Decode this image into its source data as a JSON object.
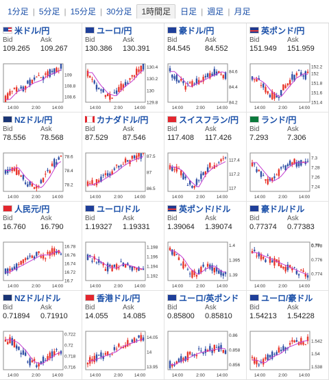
{
  "tabs": [
    {
      "label": "1分足",
      "active": false
    },
    {
      "label": "5分足",
      "active": false
    },
    {
      "label": "15分足",
      "active": false
    },
    {
      "label": "30分足",
      "active": false
    },
    {
      "label": "1時間足",
      "active": true
    },
    {
      "label": "日足",
      "active": false
    },
    {
      "label": "週足",
      "active": false
    },
    {
      "label": "月足",
      "active": false
    }
  ],
  "colors": {
    "up": "#e8352b",
    "down": "#2f4fa5",
    "ma": "#c43bd1",
    "link": "#1a4fa8"
  },
  "pairs": [
    {
      "name": "米ドル/円",
      "flag": "usa",
      "bid": "109.265",
      "ask": "109.267",
      "yticks": [
        "109",
        "108.8",
        "108.6"
      ],
      "xticks": [
        "14:00",
        "2:00",
        "14:00"
      ]
    },
    {
      "name": "ユーロ/円",
      "flag": "eur",
      "bid": "130.386",
      "ask": "130.391",
      "yticks": [
        "130.4",
        "130.2",
        "130",
        "129.8"
      ],
      "xticks": [
        "14:00",
        "2:00",
        "14:00"
      ]
    },
    {
      "name": "豪ドル/円",
      "flag": "aud",
      "bid": "84.545",
      "ask": "84.552",
      "yticks": [
        "84.6",
        "84.4",
        "84.2"
      ],
      "xticks": [
        "14:00",
        "2:00",
        "14:00"
      ]
    },
    {
      "name": "英ポンド/円",
      "flag": "gbr",
      "bid": "151.949",
      "ask": "151.959",
      "yticks": [
        "152.2",
        "152",
        "151.8",
        "151.6",
        "151.4"
      ],
      "xticks": [
        "14:00",
        "2:00",
        "14:00"
      ]
    },
    {
      "name": "NZドル/円",
      "flag": "nzd",
      "bid": "78.556",
      "ask": "78.568",
      "yticks": [
        "78.6",
        "78.4",
        "78.2"
      ],
      "xticks": [
        "14:00",
        "2:00",
        "14:00"
      ]
    },
    {
      "name": "カナダドル/円",
      "flag": "cad",
      "bid": "87.529",
      "ask": "87.546",
      "yticks": [
        "87.5",
        "87",
        "86.5"
      ],
      "xticks": [
        "14:00",
        "2:00",
        "14:00"
      ]
    },
    {
      "name": "スイスフラン/円",
      "flag": "chf",
      "bid": "117.408",
      "ask": "117.426",
      "yticks": [
        "117.4",
        "117.2",
        "117"
      ],
      "xticks": [
        "14:00",
        "2:00",
        "14:00"
      ]
    },
    {
      "name": "ランド/円",
      "flag": "zar",
      "bid": "7.293",
      "ask": "7.306",
      "yticks": [
        "7.3",
        "7.28",
        "7.26",
        "7.24"
      ],
      "xticks": [
        "14:00",
        "2:00",
        "14:00"
      ]
    },
    {
      "name": "人民元/円",
      "flag": "cny",
      "bid": "16.760",
      "ask": "16.790",
      "yticks": [
        "16.78",
        "16.76",
        "16.74",
        "16.72",
        "16.7"
      ],
      "xticks": [
        "14:00",
        "2:00",
        "14:00"
      ]
    },
    {
      "name": "ユーロ/ドル",
      "flag": "eur",
      "bid": "1.19327",
      "ask": "1.19331",
      "yticks": [
        "1.198",
        "1.196",
        "1.194",
        "1.192"
      ],
      "xticks": [
        "14:00",
        "2:00",
        "14:00"
      ]
    },
    {
      "name": "英ポンド/ドル",
      "flag": "gbr",
      "bid": "1.39064",
      "ask": "1.39074",
      "yticks": [
        "1.4",
        "1.395",
        "1.39"
      ],
      "xticks": [
        "14:00",
        "2:00",
        "14:00"
      ]
    },
    {
      "name": "豪ドル/ドル",
      "flag": "aud",
      "bid": "0.77374",
      "ask": "0.77383",
      "yticks": [
        "0.78",
        "0.778",
        "0.776",
        "0.774"
      ],
      "xticks": [
        "14:00",
        "2:00",
        "14:00"
      ]
    },
    {
      "name": "NZドル/ドル",
      "flag": "nzd",
      "bid": "0.71894",
      "ask": "0.71910",
      "yticks": [
        "0.722",
        "0.72",
        "0.718",
        "0.716"
      ],
      "xticks": [
        "14:00",
        "2:00",
        "14:00"
      ]
    },
    {
      "name": "香港ドル/円",
      "flag": "hkd",
      "bid": "14.055",
      "ask": "14.085",
      "yticks": [
        "14.05",
        "14",
        "13.95"
      ],
      "xticks": [
        "14:00",
        "2:00",
        "14:00"
      ]
    },
    {
      "name": "ユーロ/英ポンド",
      "flag": "eur",
      "bid": "0.85800",
      "ask": "0.85810",
      "yticks": [
        "0.86",
        "0.858",
        "0.856"
      ],
      "xticks": [
        "14:00",
        "2:00",
        "14:00"
      ]
    },
    {
      "name": "ユーロ/豪ドル",
      "flag": "eur",
      "bid": "1.54213",
      "ask": "1.54228",
      "yticks": [
        "1.542",
        "1.54",
        "1.538"
      ],
      "xticks": [
        "14:00",
        "2:00",
        "14:00"
      ]
    }
  ],
  "labels": {
    "bid": "Bid",
    "ask": "Ask"
  },
  "chart_data": [
    {
      "type": "candlestick",
      "pair": "米ドル/円",
      "trend": [
        108.55,
        108.7,
        108.75,
        108.85,
        108.9,
        109.0,
        109.05,
        109.15
      ],
      "ylim": [
        108.5,
        109.2
      ]
    },
    {
      "type": "candlestick",
      "pair": "ユーロ/円",
      "trend": [
        130.3,
        130.1,
        129.95,
        129.9,
        130.05,
        130.15,
        130.3,
        130.4
      ],
      "ylim": [
        129.8,
        130.45
      ]
    },
    {
      "type": "candlestick",
      "pair": "豪ドル/円",
      "trend": [
        84.6,
        84.5,
        84.4,
        84.45,
        84.5,
        84.55,
        84.6,
        84.55
      ],
      "ylim": [
        84.2,
        84.7
      ]
    },
    {
      "type": "candlestick",
      "pair": "英ポンド/円",
      "trend": [
        151.9,
        151.8,
        151.6,
        151.5,
        151.7,
        151.9,
        152.0,
        151.95
      ],
      "ylim": [
        151.4,
        152.2
      ]
    },
    {
      "type": "candlestick",
      "pair": "NZドル/円",
      "trend": [
        78.4,
        78.45,
        78.3,
        78.2,
        78.15,
        78.3,
        78.5,
        78.56
      ],
      "ylim": [
        78.1,
        78.65
      ]
    },
    {
      "type": "candlestick",
      "pair": "カナダドル/円",
      "trend": [
        86.6,
        86.7,
        86.85,
        87.0,
        87.2,
        87.35,
        87.45,
        87.53
      ],
      "ylim": [
        86.4,
        87.6
      ]
    },
    {
      "type": "candlestick",
      "pair": "スイスフラン/円",
      "trend": [
        117.3,
        117.25,
        117.1,
        117.0,
        117.2,
        117.3,
        117.35,
        117.41
      ],
      "ylim": [
        116.95,
        117.5
      ]
    },
    {
      "type": "candlestick",
      "pair": "ランド/円",
      "trend": [
        7.29,
        7.27,
        7.25,
        7.26,
        7.28,
        7.29,
        7.29,
        7.29
      ],
      "ylim": [
        7.23,
        7.31
      ]
    },
    {
      "type": "candlestick",
      "pair": "人民元/円",
      "trend": [
        16.72,
        16.73,
        16.74,
        16.75,
        16.76,
        16.76,
        16.77,
        16.76
      ],
      "ylim": [
        16.7,
        16.79
      ]
    },
    {
      "type": "candlestick",
      "pair": "ユーロ/ドル",
      "trend": [
        1.196,
        1.195,
        1.194,
        1.1935,
        1.1945,
        1.194,
        1.1935,
        1.1933
      ],
      "ylim": [
        1.191,
        1.199
      ]
    },
    {
      "type": "candlestick",
      "pair": "英ポンド/ドル",
      "trend": [
        1.398,
        1.396,
        1.392,
        1.39,
        1.392,
        1.393,
        1.391,
        1.3906
      ],
      "ylim": [
        1.388,
        1.401
      ]
    },
    {
      "type": "candlestick",
      "pair": "豪ドル/ドル",
      "trend": [
        0.777,
        0.7765,
        0.776,
        0.7755,
        0.775,
        0.7745,
        0.774,
        0.7737
      ],
      "ylim": [
        0.773,
        0.7785
      ]
    },
    {
      "type": "candlestick",
      "pair": "NZドル/ドル",
      "trend": [
        0.721,
        0.7205,
        0.719,
        0.717,
        0.7165,
        0.7175,
        0.7185,
        0.7189
      ],
      "ylim": [
        0.7155,
        0.7225
      ]
    },
    {
      "type": "candlestick",
      "pair": "香港ドル/円",
      "trend": [
        13.97,
        13.98,
        13.99,
        14.0,
        14.02,
        14.03,
        14.04,
        14.05
      ],
      "ylim": [
        13.94,
        14.07
      ]
    },
    {
      "type": "candlestick",
      "pair": "ユーロ/英ポンド",
      "trend": [
        0.856,
        0.8565,
        0.857,
        0.8575,
        0.8578,
        0.858,
        0.8582,
        0.858
      ],
      "ylim": [
        0.8553,
        0.8605
      ]
    },
    {
      "type": "candlestick",
      "pair": "ユーロ/豪ドル",
      "trend": [
        1.539,
        1.5385,
        1.5395,
        1.54,
        1.541,
        1.5415,
        1.542,
        1.5421
      ],
      "ylim": [
        1.5375,
        1.5435
      ]
    }
  ]
}
